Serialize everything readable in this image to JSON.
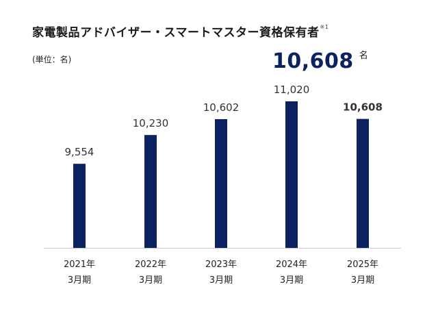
{
  "header": {
    "title": "家電製品アドバイザー・スマートマスター資格保有者",
    "title_note": "※1",
    "unit": "(単位：名)",
    "headline_value": "10,608",
    "headline_suffix": "名"
  },
  "colors": {
    "bar": "#0b2160",
    "baseline": "#c8c8c8",
    "headline": "#0b2160"
  },
  "chart_data": {
    "type": "bar",
    "title": "家電製品アドバイザー・スマートマスター資格保有者",
    "ylabel": "(単位：名)",
    "categories": [
      [
        "2021年",
        "3月期"
      ],
      [
        "2022年",
        "3月期"
      ],
      [
        "2023年",
        "3月期"
      ],
      [
        "2024年",
        "3月期"
      ],
      [
        "2025年",
        "3月期"
      ]
    ],
    "values": [
      9554,
      10230,
      10602,
      11020,
      10608
    ],
    "value_labels": [
      "9,554",
      "10,230",
      "10,602",
      "11,020",
      "10,608"
    ],
    "highlight_index": 4,
    "ylim": [
      7580,
      11020
    ],
    "grid": false,
    "legend": "none"
  }
}
